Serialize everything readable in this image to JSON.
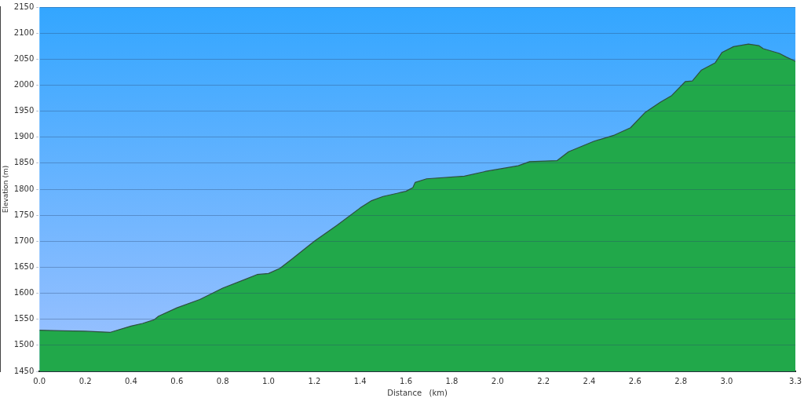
{
  "chart_data": {
    "type": "area",
    "xlabel": "Distance   (km)",
    "ylabel": "Elevation (m)",
    "xlim": [
      0,
      3.3
    ],
    "xticks": [
      {
        "value": 0,
        "label": "0.0"
      },
      {
        "value": 0.2,
        "label": "0.2"
      },
      {
        "value": 0.4,
        "label": "0.4"
      },
      {
        "value": 0.6,
        "label": "0.6"
      },
      {
        "value": 0.8,
        "label": "0.8"
      },
      {
        "value": 1,
        "label": "1.0"
      },
      {
        "value": 1.2,
        "label": "1.2"
      },
      {
        "value": 1.4,
        "label": "1.4"
      },
      {
        "value": 1.6,
        "label": "1.6"
      },
      {
        "value": 1.8,
        "label": "1.8"
      },
      {
        "value": 2,
        "label": "2.0"
      },
      {
        "value": 2.2,
        "label": "2.2"
      },
      {
        "value": 2.4,
        "label": "2.4"
      },
      {
        "value": 2.6,
        "label": "2.6"
      },
      {
        "value": 2.8,
        "label": "2.8"
      },
      {
        "value": 3,
        "label": "3.0"
      },
      {
        "value": 3.3,
        "label": "3.3"
      }
    ],
    "ylim": [
      1450,
      2150
    ],
    "yticks": [
      1450,
      1500,
      1550,
      1600,
      1650,
      1700,
      1750,
      1800,
      1850,
      1900,
      1950,
      2000,
      2050,
      2100,
      2150
    ],
    "grid": "y",
    "legend": false,
    "series": [
      {
        "color": "#21a84a",
        "x": [
          0,
          0.1,
          0.2,
          0.31,
          0.4,
          0.45,
          0.5,
          0.52,
          0.6,
          0.7,
          0.8,
          0.9,
          0.95,
          1.0,
          1.05,
          1.1,
          1.2,
          1.3,
          1.4,
          1.45,
          1.5,
          1.6,
          1.63,
          1.64,
          1.69,
          1.855,
          1.945,
          2.09,
          2.14,
          2.26,
          2.31,
          2.42,
          2.51,
          2.58,
          2.645,
          2.71,
          2.76,
          2.82,
          2.85,
          2.89,
          2.95,
          2.98,
          3.03,
          3.095,
          3.14,
          3.16,
          3.23,
          3.26,
          3.3
        ],
        "values": [
          1529,
          1528,
          1527,
          1525,
          1537,
          1542,
          1549,
          1556,
          1572,
          1588,
          1610,
          1627,
          1636,
          1638,
          1648,
          1665,
          1700,
          1731,
          1764,
          1778,
          1786,
          1796,
          1803,
          1813,
          1820,
          1825,
          1834,
          1845,
          1853,
          1855,
          1872,
          1892,
          1904,
          1918,
          1948,
          1967,
          1980,
          2007,
          2008,
          2029,
          2043,
          2063,
          2074,
          2079,
          2076,
          2070,
          2061,
          2054,
          2046
        ]
      }
    ]
  }
}
